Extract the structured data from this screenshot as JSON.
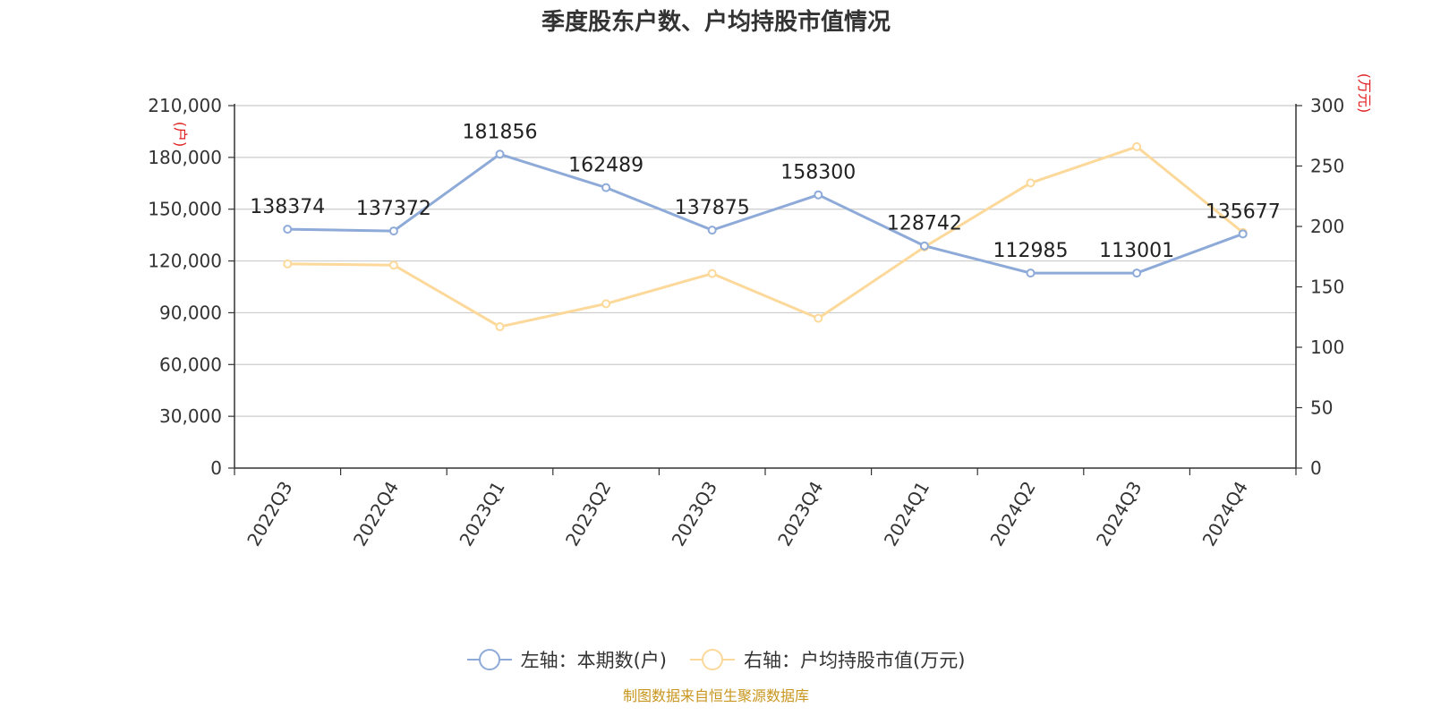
{
  "chart_data": {
    "type": "line",
    "title": "季度股东户数、户均持股市值情况",
    "categories": [
      "2022Q3",
      "2022Q4",
      "2023Q1",
      "2023Q2",
      "2023Q3",
      "2023Q4",
      "2024Q1",
      "2024Q2",
      "2024Q3",
      "2024Q4"
    ],
    "left_axis": {
      "unit": "(户)",
      "ylim": [
        0,
        210000
      ],
      "ticks": [
        "0",
        "30,000",
        "60,000",
        "90,000",
        "120,000",
        "150,000",
        "180,000",
        "210,000"
      ]
    },
    "right_axis": {
      "unit": "(万元)",
      "ylim": [
        0,
        300
      ],
      "ticks": [
        "0",
        "50",
        "100",
        "150",
        "200",
        "250",
        "300"
      ]
    },
    "series": [
      {
        "name": "左轴：本期数(户)",
        "axis": "left",
        "color": "#8eaad8",
        "values": [
          138374,
          137372,
          181856,
          162489,
          137875,
          158300,
          128742,
          112985,
          113001,
          135677
        ],
        "labels": [
          "138374",
          "137372",
          "181856",
          "162489",
          "137875",
          "158300",
          "128742",
          "112985",
          "113001",
          "135677"
        ]
      },
      {
        "name": "右轴：户均持股市值(万元)",
        "axis": "right",
        "color": "#fcd99a",
        "values": [
          169,
          168,
          117,
          136,
          161,
          124,
          183,
          236,
          266,
          195
        ]
      }
    ],
    "grid": true,
    "legend_position": "bottom-center"
  },
  "source": "制图数据来自恒生聚源数据库"
}
